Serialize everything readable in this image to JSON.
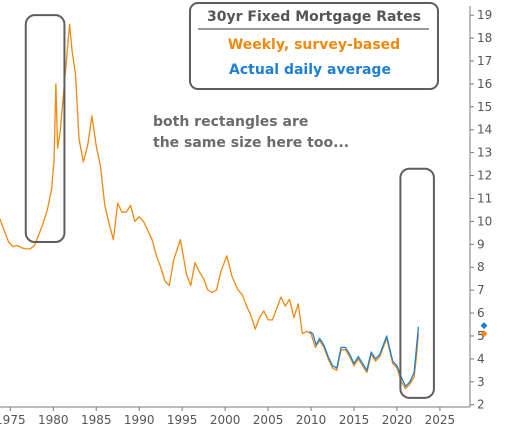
{
  "chart_data": {
    "type": "line",
    "title": "30yr Fixed Mortgage Rates",
    "annotation_lines": [
      "both rectangles are",
      "the same size here too..."
    ],
    "xlim": [
      1973.8,
      2028.5
    ],
    "ylim": [
      1.9,
      19.4
    ],
    "x_ticks": [
      1975,
      1980,
      1985,
      1990,
      1995,
      2000,
      2005,
      2010,
      2015,
      2020,
      2025
    ],
    "y_ticks": [
      2,
      3,
      4,
      5,
      6,
      7,
      8,
      9,
      10,
      11,
      12,
      13,
      14,
      15,
      16,
      17,
      18,
      19
    ],
    "y_axis_side": "right",
    "grid": false,
    "legend": "top-right",
    "colors": {
      "weekly": "#f0890f",
      "daily": "#1e7fd6",
      "rect": "#5e5e5e",
      "axis": "#7a7a7a"
    },
    "series": [
      {
        "name": "Weekly, survey-based",
        "points": [
          [
            1973.8,
            10.1
          ],
          [
            1974.3,
            9.6
          ],
          [
            1974.8,
            9.1
          ],
          [
            1975.3,
            8.9
          ],
          [
            1975.8,
            8.95
          ],
          [
            1976.3,
            8.85
          ],
          [
            1976.8,
            8.8
          ],
          [
            1977.3,
            8.8
          ],
          [
            1977.8,
            8.95
          ],
          [
            1978.3,
            9.4
          ],
          [
            1978.8,
            9.9
          ],
          [
            1979.3,
            10.5
          ],
          [
            1979.8,
            11.4
          ],
          [
            1980.1,
            12.7
          ],
          [
            1980.3,
            16.0
          ],
          [
            1980.5,
            13.2
          ],
          [
            1980.8,
            13.9
          ],
          [
            1981.2,
            15.6
          ],
          [
            1981.6,
            17.3
          ],
          [
            1981.9,
            18.6
          ],
          [
            1982.2,
            17.4
          ],
          [
            1982.6,
            16.4
          ],
          [
            1983.0,
            13.6
          ],
          [
            1983.5,
            12.6
          ],
          [
            1984.0,
            13.3
          ],
          [
            1984.5,
            14.6
          ],
          [
            1985.0,
            13.3
          ],
          [
            1985.5,
            12.4
          ],
          [
            1986.0,
            10.7
          ],
          [
            1986.5,
            9.9
          ],
          [
            1987.0,
            9.2
          ],
          [
            1987.5,
            10.8
          ],
          [
            1988.0,
            10.4
          ],
          [
            1988.5,
            10.4
          ],
          [
            1989.0,
            10.7
          ],
          [
            1989.5,
            10.0
          ],
          [
            1990.0,
            10.2
          ],
          [
            1990.5,
            10.0
          ],
          [
            1991.0,
            9.6
          ],
          [
            1991.5,
            9.2
          ],
          [
            1992.0,
            8.5
          ],
          [
            1992.5,
            8.0
          ],
          [
            1993.0,
            7.4
          ],
          [
            1993.5,
            7.2
          ],
          [
            1994.0,
            8.3
          ],
          [
            1994.8,
            9.2
          ],
          [
            1995.5,
            7.7
          ],
          [
            1996.0,
            7.2
          ],
          [
            1996.5,
            8.2
          ],
          [
            1997.0,
            7.8
          ],
          [
            1997.5,
            7.5
          ],
          [
            1998.0,
            7.0
          ],
          [
            1998.5,
            6.9
          ],
          [
            1999.0,
            7.0
          ],
          [
            1999.5,
            7.8
          ],
          [
            2000.2,
            8.5
          ],
          [
            2000.8,
            7.6
          ],
          [
            2001.5,
            7.0
          ],
          [
            2002.0,
            6.8
          ],
          [
            2002.5,
            6.3
          ],
          [
            2003.0,
            5.9
          ],
          [
            2003.5,
            5.3
          ],
          [
            2004.0,
            5.8
          ],
          [
            2004.5,
            6.1
          ],
          [
            2005.0,
            5.7
          ],
          [
            2005.5,
            5.7
          ],
          [
            2006.0,
            6.2
          ],
          [
            2006.5,
            6.7
          ],
          [
            2007.0,
            6.3
          ],
          [
            2007.5,
            6.6
          ],
          [
            2008.0,
            5.8
          ],
          [
            2008.5,
            6.4
          ],
          [
            2009.0,
            5.1
          ],
          [
            2009.5,
            5.2
          ],
          [
            2010.0,
            5.1
          ],
          [
            2010.5,
            4.5
          ],
          [
            2011.0,
            4.8
          ],
          [
            2011.5,
            4.5
          ],
          [
            2012.0,
            4.0
          ],
          [
            2012.5,
            3.6
          ],
          [
            2013.0,
            3.5
          ],
          [
            2013.5,
            4.4
          ],
          [
            2014.0,
            4.4
          ],
          [
            2014.5,
            4.1
          ],
          [
            2015.0,
            3.7
          ],
          [
            2015.5,
            4.0
          ],
          [
            2016.0,
            3.7
          ],
          [
            2016.5,
            3.4
          ],
          [
            2017.0,
            4.2
          ],
          [
            2017.5,
            3.9
          ],
          [
            2018.0,
            4.1
          ],
          [
            2018.8,
            4.9
          ],
          [
            2019.5,
            3.8
          ],
          [
            2020.0,
            3.6
          ],
          [
            2020.5,
            3.0
          ],
          [
            2021.0,
            2.7
          ],
          [
            2021.5,
            2.9
          ],
          [
            2022.0,
            3.2
          ],
          [
            2022.3,
            4.2
          ],
          [
            2022.5,
            5.1
          ]
        ]
      },
      {
        "name": "Actual daily average",
        "points": [
          [
            2009.8,
            5.2
          ],
          [
            2010.2,
            5.1
          ],
          [
            2010.6,
            4.6
          ],
          [
            2011.0,
            4.9
          ],
          [
            2011.5,
            4.6
          ],
          [
            2012.0,
            4.1
          ],
          [
            2012.5,
            3.7
          ],
          [
            2013.0,
            3.6
          ],
          [
            2013.5,
            4.5
          ],
          [
            2014.0,
            4.5
          ],
          [
            2014.5,
            4.2
          ],
          [
            2015.0,
            3.8
          ],
          [
            2015.5,
            4.1
          ],
          [
            2016.0,
            3.8
          ],
          [
            2016.5,
            3.5
          ],
          [
            2017.0,
            4.3
          ],
          [
            2017.5,
            4.0
          ],
          [
            2018.0,
            4.2
          ],
          [
            2018.8,
            5.0
          ],
          [
            2019.5,
            3.9
          ],
          [
            2020.0,
            3.7
          ],
          [
            2020.5,
            3.2
          ],
          [
            2021.0,
            2.8
          ],
          [
            2021.5,
            3.0
          ],
          [
            2022.0,
            3.4
          ],
          [
            2022.3,
            4.6
          ],
          [
            2022.5,
            5.4
          ]
        ]
      }
    ],
    "end_markers": [
      {
        "series": "Actual daily average",
        "value": 5.45
      },
      {
        "series": "Weekly, survey-based",
        "value": 5.1
      }
    ],
    "highlight_rects": [
      {
        "x": [
          1976.8,
          1981.3
        ],
        "y": [
          9.1,
          19.0
        ]
      },
      {
        "x": [
          2020.4,
          2024.3
        ],
        "y": [
          2.3,
          12.3
        ]
      }
    ]
  }
}
